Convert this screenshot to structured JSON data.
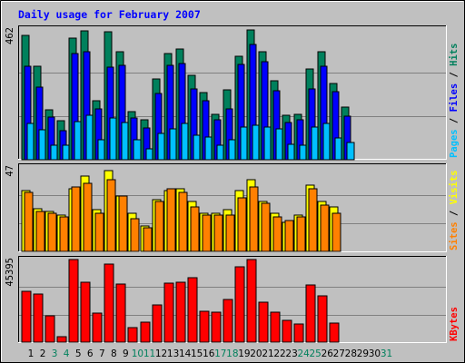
{
  "chart_data": {
    "type": "bar",
    "title": "Daily usage for February 2007",
    "x": [
      "1",
      "2",
      "3",
      "4",
      "5",
      "6",
      "7",
      "8",
      "9",
      "10",
      "11",
      "12",
      "13",
      "14",
      "15",
      "16",
      "17",
      "18",
      "19",
      "20",
      "21",
      "22",
      "23",
      "24",
      "25",
      "26",
      "27",
      "28",
      "29",
      "30",
      "31"
    ],
    "weekend_days": [
      "3",
      "4",
      "10",
      "11",
      "17",
      "18",
      "24",
      "25",
      "31"
    ],
    "panels": [
      {
        "name": "hits_files_pages",
        "label_parts": [
          "Pages",
          " / ",
          "Files",
          " / ",
          "Hits"
        ],
        "ymax_label": "462",
        "ymax": 462,
        "series": [
          {
            "name": "Hits",
            "color": "#00805c",
            "values": [
              440,
              330,
              178,
              137,
              429,
              456,
              208,
              452,
              382,
              170,
              141,
              285,
              375,
              390,
              298,
              239,
              162,
              246,
              366,
              459,
              382,
              279,
              157,
              162,
              322,
              382,
              268,
              186,
              0,
              0,
              0
            ]
          },
          {
            "name": "Files",
            "color": "#0000ff",
            "values": [
              331,
              258,
              151,
              103,
              375,
              382,
              179,
              328,
              334,
              146,
              113,
              233,
              335,
              340,
              250,
              210,
              142,
              180,
              338,
              409,
              348,
              245,
              131,
              140,
              250,
              330,
              240,
              153,
              0,
              0,
              0
            ]
          },
          {
            "name": "Pages",
            "color": "#00c0ff",
            "values": [
              129,
              106,
              51,
              51,
              134,
              158,
              72,
              147,
              132,
              72,
              38,
              93,
              109,
              129,
              87,
              81,
              51,
              71,
              115,
              122,
              114,
              110,
              53,
              52,
              114,
              127,
              77,
              61,
              0,
              0,
              0
            ]
          }
        ]
      },
      {
        "name": "visits_sites",
        "label_parts": [
          "Sites",
          " / ",
          "Visits"
        ],
        "ymax_label": "47",
        "ymax": 47,
        "series": [
          {
            "name": "Visits",
            "color": "#ffff00",
            "values": [
              34,
              24,
              22,
              20,
              35,
              42,
              23,
              45,
              31,
              21,
              14,
              29,
              34,
              35,
              28,
              21,
              21,
              23,
              34,
              40,
              28,
              21,
              16,
              20,
              37,
              28,
              25,
              0,
              0,
              0,
              0
            ]
          },
          {
            "name": "Sites",
            "color": "#ff8000",
            "values": [
              33,
              22,
              21,
              19,
              36,
              38,
              21,
              40,
              31,
              18,
              13,
              28,
              35,
              33,
              25,
              20,
              20,
              20,
              30,
              36,
              27,
              19,
              17,
              19,
              35,
              26,
              21,
              0,
              0,
              0,
              0
            ]
          }
        ]
      },
      {
        "name": "kbytes",
        "label_parts": [
          "KBytes"
        ],
        "ymax_label": "45395",
        "ymax": 45395,
        "series": [
          {
            "name": "KBytes",
            "color": "#ff0000",
            "values": [
              28000,
              26500,
              14700,
              2900,
              45395,
              32900,
              16200,
              42800,
              31800,
              7900,
              11000,
              20400,
              32600,
              33000,
              35600,
              17200,
              16700,
              23400,
              41500,
              45395,
              22100,
              16500,
              12100,
              10100,
              31500,
              25600,
              10400,
              0,
              0,
              0,
              0
            ]
          }
        ]
      }
    ],
    "colors": {
      "title": "#0000ff",
      "background": "#c0c0c0",
      "plot_bg": "#c0c0c0",
      "frame_dark": "#000000",
      "frame_light": "#ffffff",
      "gridline": "#808080",
      "weekday_label": "#000000",
      "weekend_label": "#00805c"
    }
  }
}
